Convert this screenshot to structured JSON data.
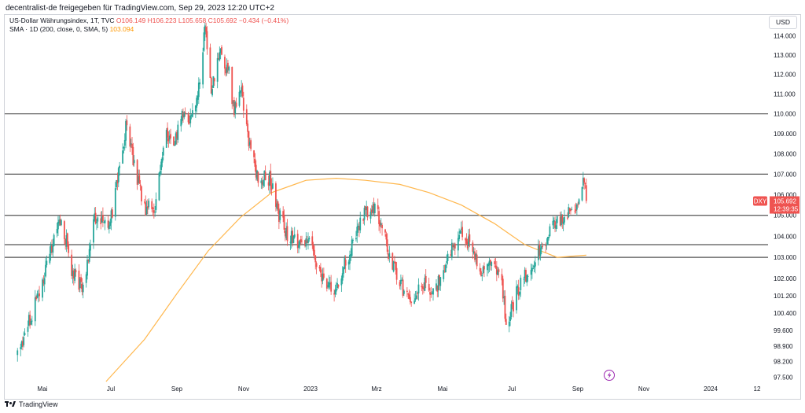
{
  "header": {
    "publish_line": "decentralist-de freigegeben für TradingView.com, Sep 29, 2023 12:20 UTC+2"
  },
  "legend": {
    "symbol": "US-Dollar Währungsindex, 1T, TVC",
    "ohlc": "O106.149  H106.223  L105.658  C105.692  −0.434 (−0.41%)",
    "sma_label": "SMA · 1D (200, close, 0, SMA, 5)",
    "sma_value": "103.094"
  },
  "currency_button": "USD",
  "price_tag": {
    "symbol": "DXY",
    "price": "105.692",
    "countdown": "12:39:35"
  },
  "footer": {
    "brand": "TradingView"
  },
  "colors": {
    "up": "#26a69a",
    "down": "#ef5350",
    "sma": "#ffb74d",
    "hline": "#555555"
  },
  "icons": [
    "tradingview-logo-icon",
    "lightning-icon"
  ],
  "chart_data": {
    "type": "candlestick",
    "y_axis": {
      "scale": "log",
      "ticks": [
        "114.000",
        "113.000",
        "112.000",
        "111.000",
        "110.000",
        "109.000",
        "108.000",
        "107.000",
        "106.000",
        "105.000",
        "104.000",
        "103.000",
        "102.000",
        "101.200",
        "100.400",
        "99.600",
        "98.900",
        "98.200",
        "97.500"
      ],
      "range": [
        97.3,
        115.1
      ]
    },
    "x_axis": {
      "ticks": [
        "Mai",
        "Jul",
        "Sep",
        "Nov",
        "2023",
        "Mrz",
        "Mai",
        "Jul",
        "Sep",
        "Nov",
        "2024",
        "12"
      ]
    },
    "horizontal_levels": [
      110.0,
      107.0,
      105.0,
      103.6,
      103.0
    ],
    "closes": [
      [
        "2022-04-01",
        98.5
      ],
      [
        "2022-04-12",
        100.0
      ],
      [
        "2022-04-25",
        101.8
      ],
      [
        "2022-05-04",
        103.5
      ],
      [
        "2022-05-13",
        104.9
      ],
      [
        "2022-05-24",
        102.2
      ],
      [
        "2022-06-03",
        101.6
      ],
      [
        "2022-06-15",
        105.0
      ],
      [
        "2022-06-28",
        104.2
      ],
      [
        "2022-07-06",
        106.8
      ],
      [
        "2022-07-14",
        109.3
      ],
      [
        "2022-07-27",
        106.3
      ],
      [
        "2022-08-02",
        105.4
      ],
      [
        "2022-08-10",
        105.2
      ],
      [
        "2022-08-22",
        108.9
      ],
      [
        "2022-08-31",
        108.7
      ],
      [
        "2022-09-07",
        110.2
      ],
      [
        "2022-09-15",
        109.7
      ],
      [
        "2022-09-22",
        111.3
      ],
      [
        "2022-09-28",
        114.4
      ],
      [
        "2022-10-04",
        111.0
      ],
      [
        "2022-10-12",
        113.3
      ],
      [
        "2022-10-21",
        112.0
      ],
      [
        "2022-10-26",
        110.0
      ],
      [
        "2022-11-01",
        111.5
      ],
      [
        "2022-11-10",
        108.2
      ],
      [
        "2022-11-18",
        106.9
      ],
      [
        "2022-11-29",
        106.8
      ],
      [
        "2022-12-07",
        105.2
      ],
      [
        "2022-12-15",
        104.2
      ],
      [
        "2022-12-29",
        103.5
      ],
      [
        "2023-01-06",
        103.8
      ],
      [
        "2023-01-18",
        102.1
      ],
      [
        "2023-01-31",
        101.2
      ],
      [
        "2023-02-02",
        101.8
      ],
      [
        "2023-02-14",
        103.3
      ],
      [
        "2023-02-27",
        104.9
      ],
      [
        "2023-03-08",
        105.6
      ],
      [
        "2023-03-16",
        104.6
      ],
      [
        "2023-03-24",
        103.0
      ],
      [
        "2023-04-03",
        101.8
      ],
      [
        "2023-04-13",
        101.0
      ],
      [
        "2023-04-25",
        101.8
      ],
      [
        "2023-05-05",
        101.2
      ],
      [
        "2023-05-16",
        102.6
      ],
      [
        "2023-05-31",
        104.4
      ],
      [
        "2023-06-09",
        103.6
      ],
      [
        "2023-06-21",
        102.2
      ],
      [
        "2023-06-30",
        103.0
      ],
      [
        "2023-07-10",
        102.0
      ],
      [
        "2023-07-14",
        99.8
      ],
      [
        "2023-07-24",
        101.3
      ],
      [
        "2023-08-03",
        102.3
      ],
      [
        "2023-08-14",
        103.2
      ],
      [
        "2023-08-25",
        104.2
      ],
      [
        "2023-09-05",
        104.8
      ],
      [
        "2023-09-14",
        105.3
      ],
      [
        "2023-09-21",
        105.6
      ],
      [
        "2023-09-27",
        106.7
      ],
      [
        "2023-09-29",
        105.692
      ]
    ],
    "sma_200": [
      [
        "2022-06-25",
        97.3
      ],
      [
        "2022-08-01",
        99.2
      ],
      [
        "2022-09-01",
        101.3
      ],
      [
        "2022-10-01",
        103.3
      ],
      [
        "2022-11-01",
        104.9
      ],
      [
        "2022-12-01",
        106.1
      ],
      [
        "2023-01-03",
        106.7
      ],
      [
        "2023-02-01",
        106.8
      ],
      [
        "2023-03-01",
        106.7
      ],
      [
        "2023-04-03",
        106.5
      ],
      [
        "2023-05-01",
        106.1
      ],
      [
        "2023-06-01",
        105.5
      ],
      [
        "2023-07-03",
        104.6
      ],
      [
        "2023-08-01",
        103.6
      ],
      [
        "2023-09-01",
        103.0
      ],
      [
        "2023-09-29",
        103.1
      ]
    ]
  }
}
